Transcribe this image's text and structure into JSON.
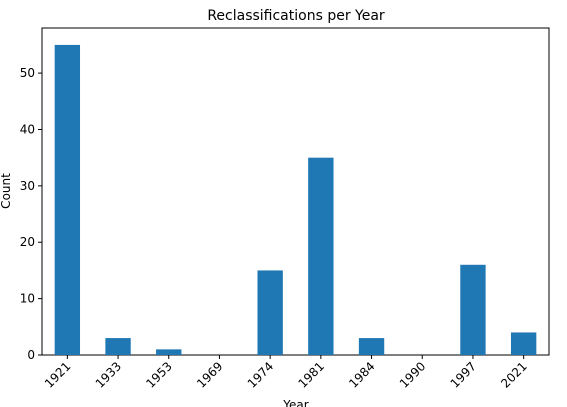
{
  "chart_data": {
    "type": "bar",
    "title": "Reclassifications per Year",
    "xlabel": "Year",
    "ylabel": "Count",
    "categories": [
      "1921",
      "1933",
      "1953",
      "1969",
      "1974",
      "1981",
      "1984",
      "1990",
      "1997",
      "2021"
    ],
    "values": [
      55,
      3,
      1,
      0,
      15,
      35,
      3,
      0,
      16,
      4
    ],
    "ylim": [
      0,
      58
    ],
    "yticks": [
      0,
      10,
      20,
      30,
      40,
      50
    ],
    "grid": false,
    "bar_color": "#1f77b4"
  }
}
